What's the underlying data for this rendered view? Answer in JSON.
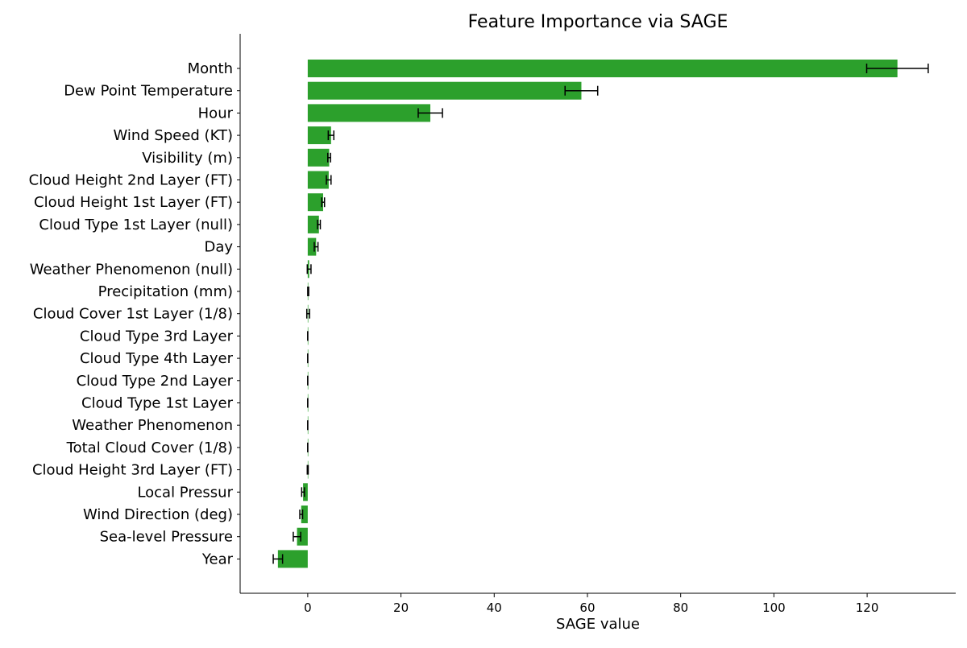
{
  "chart_data": {
    "type": "bar",
    "orientation": "horizontal",
    "title": "Feature Importance via SAGE",
    "xlabel": "SAGE value",
    "ylabel": "",
    "xlim": [
      -14.5,
      139
    ],
    "xticks": [
      0,
      20,
      40,
      60,
      80,
      100,
      120
    ],
    "grid": false,
    "legend": "none",
    "bar_color": "#2ca02c",
    "errorbar_color": "#000000",
    "series": [
      {
        "categories": [
          "Month",
          "Dew Point Temperature",
          "Hour",
          "Wind Speed (KT)",
          "Visibility (m)",
          "Cloud Height 2nd Layer (FT)",
          "Cloud Height 1st Layer (FT)",
          "Cloud Type 1st Layer (null)",
          "Day",
          "Weather Phenomenon (null)",
          "Precipitation (mm)",
          "Cloud Cover 1st Layer (1/8)",
          "Cloud Type 3rd Layer",
          "Cloud Type 4th Layer",
          "Cloud Type 2nd Layer",
          "Cloud Type 1st Layer",
          "Weather Phenomenon",
          "Total Cloud Cover (1/8)",
          "Cloud Height 3rd Layer (FT)",
          "Local Pressur",
          "Wind Direction (deg)",
          "Sea-level Pressure",
          "Year"
        ],
        "values": [
          126.5,
          58.7,
          26.3,
          5.0,
          4.6,
          4.5,
          3.3,
          2.4,
          1.8,
          0.3,
          0.1,
          0.1,
          0.0,
          0.0,
          0.0,
          0.0,
          0.0,
          0.0,
          0.0,
          -1.0,
          -1.4,
          -2.3,
          -6.4
        ],
        "errors": [
          6.6,
          3.5,
          2.6,
          0.6,
          0.3,
          0.5,
          0.3,
          0.3,
          0.4,
          0.4,
          0.1,
          0.3,
          0.0,
          0.0,
          0.0,
          0.0,
          0.0,
          0.0,
          0.1,
          0.3,
          0.3,
          0.8,
          1.0
        ]
      }
    ]
  }
}
